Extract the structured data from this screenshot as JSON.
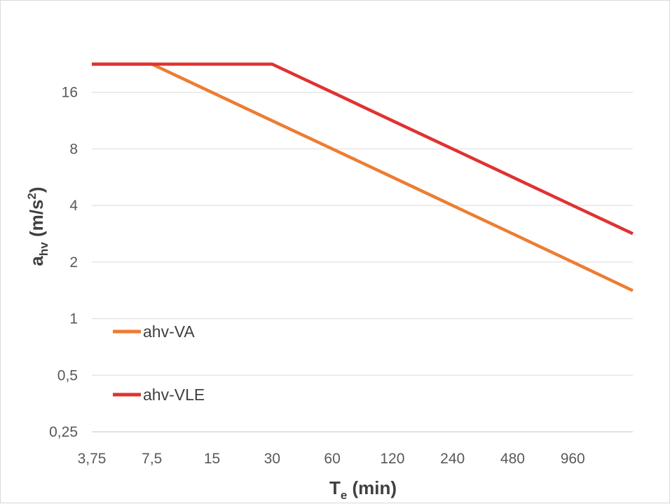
{
  "chart_data": {
    "type": "line",
    "x_scale": "log2",
    "y_scale": "log2",
    "x_ticks": [
      {
        "value": 3.75,
        "label": "3,75"
      },
      {
        "value": 7.5,
        "label": "7,5"
      },
      {
        "value": 15,
        "label": "15"
      },
      {
        "value": 30,
        "label": "30"
      },
      {
        "value": 60,
        "label": "60"
      },
      {
        "value": 120,
        "label": "120"
      },
      {
        "value": 240,
        "label": "240"
      },
      {
        "value": 480,
        "label": "480"
      },
      {
        "value": 960,
        "label": "960"
      }
    ],
    "y_ticks": [
      {
        "value": 0.25,
        "label": "0,25"
      },
      {
        "value": 0.5,
        "label": "0,5"
      },
      {
        "value": 1,
        "label": "1"
      },
      {
        "value": 2,
        "label": "2"
      },
      {
        "value": 4,
        "label": "4"
      },
      {
        "value": 8,
        "label": "8"
      },
      {
        "value": 16,
        "label": "16"
      }
    ],
    "xlim": [
      3.75,
      1920
    ],
    "ylim": [
      0.25,
      32
    ],
    "xlabel": {
      "main": "T",
      "sub": "e",
      "rest": " (min)"
    },
    "ylabel": {
      "main": "a",
      "sub": "hv",
      "rest": " (m/s",
      "sup": "2",
      "end": ")"
    },
    "grid": "horizontal",
    "legend_position": "left",
    "series": [
      {
        "name": "ahv-VA",
        "color": "#ED7D31",
        "x": [
          3.75,
          7.5,
          30,
          60,
          120,
          240,
          480,
          960,
          1920
        ],
        "y": [
          22.6,
          22.6,
          11.3,
          8,
          5.66,
          4,
          2.83,
          2,
          1.41
        ]
      },
      {
        "name": "ahv-VLE",
        "color": "#E03232",
        "x": [
          3.75,
          7.5,
          30,
          60,
          120,
          240,
          480,
          960,
          1920
        ],
        "y": [
          22.6,
          22.6,
          22.6,
          16,
          11.3,
          8,
          5.66,
          4,
          2.83
        ]
      }
    ]
  }
}
